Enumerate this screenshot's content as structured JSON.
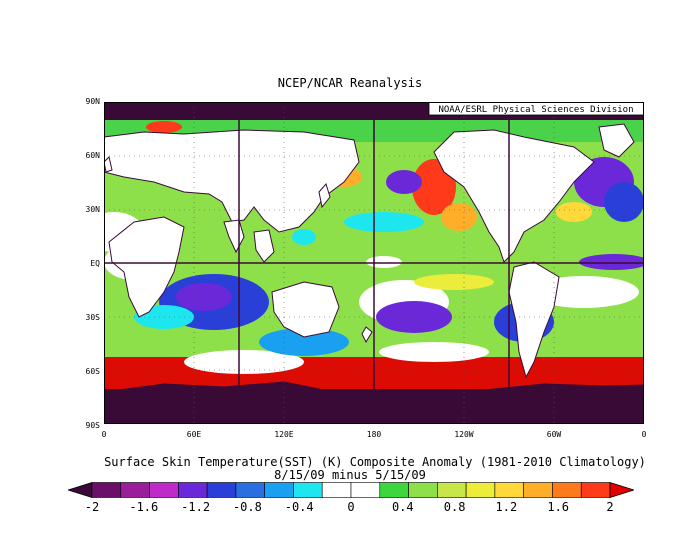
{
  "title": "NCEP/NCAR Reanalysis",
  "credit": "NOAA/ESRL Physical Sciences Division",
  "lat_labels": [
    "90N",
    "60N",
    "30N",
    "EQ",
    "30S",
    "60S",
    "90S"
  ],
  "lon_labels": [
    "0",
    "60E",
    "120E",
    "180",
    "120W",
    "60W",
    "0"
  ],
  "caption_line1": "Surface Skin Temperature(SST) (K) Composite Anomaly (1981-2010 Climatology)",
  "caption_line2": "8/15/09 minus 5/15/09",
  "colorbar": {
    "colors": [
      "#3a0a36",
      "#6b0f6b",
      "#9a1e9a",
      "#c02ac9",
      "#6a28d8",
      "#2a3fd8",
      "#2a6fe0",
      "#1aa0f0",
      "#1ee6ee",
      "#ffffff",
      "#ffffff",
      "#3ed63e",
      "#8ee04a",
      "#c8e64a",
      "#ecec3a",
      "#ffd83a",
      "#ffae2a",
      "#ff7a1a",
      "#ff3a1a",
      "#e00000"
    ],
    "ticks": [
      "-2",
      "-1.6",
      "-1.2",
      "-0.8",
      "-0.4",
      "0",
      "0.4",
      "0.8",
      "1.2",
      "1.6",
      "2"
    ],
    "range": [
      -2,
      2
    ]
  }
}
